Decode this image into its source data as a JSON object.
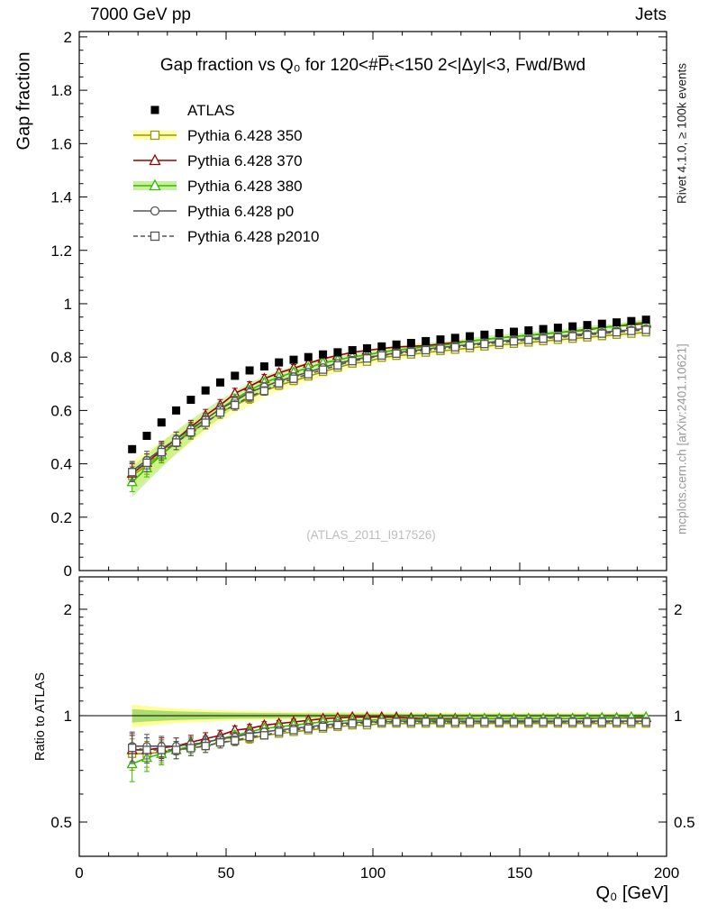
{
  "header": {
    "beam": "7000 GeV pp",
    "process": "Jets"
  },
  "panel_title": "Gap fraction vs Q₀ for 120<#P̅ₜ<150  2<|Δy|<3, Fwd/Bwd",
  "watermark": "(ATLAS_2011_I917526)",
  "side_notes": {
    "right_top": "Rivet 4.1.0, ≥ 100k events",
    "right_bottom": "mcplots.cern.ch [arXiv:2401.10621]"
  },
  "axes": {
    "x_label": "Q₀ [GeV]",
    "y_main_label": "Gap fraction",
    "y_ratio_label": "Ratio to ATLAS",
    "x_ticks": [
      0,
      50,
      100,
      150,
      200
    ],
    "y_main_ticks": [
      0,
      0.2,
      0.4,
      0.6,
      0.8,
      1,
      1.2,
      1.4,
      1.6,
      1.8,
      2
    ],
    "y_ratio_ticks": [
      0.5,
      1,
      2
    ]
  },
  "chart_data": {
    "type": "scatter",
    "title": "Gap fraction vs Q0 for 120<#PT<150, 2<|dy|<3, Fwd/Bwd",
    "xlabel": "Q0 [GeV]",
    "ylabel_main": "Gap fraction",
    "ylabel_ratio": "Ratio to ATLAS",
    "xlim": [
      0,
      200
    ],
    "ylim_main": [
      0,
      2.02
    ],
    "ylim_ratio": [
      0.4,
      2.47
    ],
    "ratio_scale": "log",
    "x": [
      18,
      23,
      28,
      33,
      38,
      43,
      48,
      53,
      58,
      63,
      68,
      73,
      78,
      83,
      88,
      93,
      98,
      103,
      108,
      113,
      118,
      123,
      128,
      133,
      138,
      143,
      148,
      153,
      158,
      163,
      168,
      173,
      178,
      183,
      188,
      193
    ],
    "mc_yerr": [
      0.036,
      0.033,
      0.03,
      0.027,
      0.025,
      0.023,
      0.021,
      0.019,
      0.018,
      0.016,
      0.015,
      0.014,
      0.013,
      0.013,
      0.012,
      0.011,
      0.011,
      0.01,
      0.01,
      0.009,
      0.009,
      0.009,
      0.008,
      0.008,
      0.008,
      0.008,
      0.007,
      0.007,
      0.007,
      0.007,
      0.007,
      0.007,
      0.006,
      0.006,
      0.006,
      0.006
    ],
    "series": [
      {
        "name": "ATLAS",
        "marker": "filled-square",
        "color": "#000000",
        "line": false,
        "values": [
          0.455,
          0.505,
          0.555,
          0.6,
          0.64,
          0.675,
          0.705,
          0.73,
          0.75,
          0.765,
          0.78,
          0.79,
          0.8,
          0.81,
          0.818,
          0.826,
          0.833,
          0.84,
          0.847,
          0.853,
          0.86,
          0.866,
          0.872,
          0.878,
          0.884,
          0.89,
          0.895,
          0.9,
          0.905,
          0.91,
          0.915,
          0.92,
          0.925,
          0.93,
          0.935,
          0.94
        ]
      },
      {
        "name": "Pythia 6.428 350",
        "marker": "open-square",
        "color": "#9a9a00",
        "line": true,
        "band": "#ffff66",
        "values": [
          0.355,
          0.394,
          0.438,
          0.48,
          0.518,
          0.554,
          0.592,
          0.62,
          0.645,
          0.673,
          0.694,
          0.711,
          0.728,
          0.745,
          0.761,
          0.776,
          0.783,
          0.798,
          0.805,
          0.81,
          0.817,
          0.823,
          0.828,
          0.834,
          0.84,
          0.846,
          0.85,
          0.855,
          0.86,
          0.865,
          0.869,
          0.874,
          0.879,
          0.884,
          0.888,
          0.893
        ]
      },
      {
        "name": "Pythia 6.428 370",
        "marker": "open-triangle",
        "color": "#990000",
        "line": true,
        "values": [
          0.364,
          0.404,
          0.45,
          0.492,
          0.538,
          0.581,
          0.62,
          0.664,
          0.69,
          0.719,
          0.741,
          0.758,
          0.776,
          0.794,
          0.806,
          0.818,
          0.825,
          0.832,
          0.838,
          0.84,
          0.843,
          0.849,
          0.855,
          0.86,
          0.866,
          0.872,
          0.877,
          0.882,
          0.887,
          0.892,
          0.897,
          0.902,
          0.911,
          0.916,
          0.921,
          0.926
        ]
      },
      {
        "name": "Pythia 6.428 380",
        "marker": "open-triangle",
        "color": "#33bb00",
        "line": true,
        "band": "#99e24d",
        "values": [
          0.332,
          0.384,
          0.433,
          0.48,
          0.525,
          0.567,
          0.606,
          0.642,
          0.675,
          0.704,
          0.725,
          0.743,
          0.76,
          0.778,
          0.789,
          0.801,
          0.808,
          0.819,
          0.826,
          0.832,
          0.839,
          0.844,
          0.85,
          0.86,
          0.866,
          0.872,
          0.877,
          0.882,
          0.887,
          0.892,
          0.897,
          0.906,
          0.911,
          0.916,
          0.926,
          0.931
        ]
      },
      {
        "name": "Pythia 6.428 p0",
        "marker": "open-circle",
        "color": "#555555",
        "line": true,
        "values": [
          0.373,
          0.414,
          0.455,
          0.492,
          0.531,
          0.567,
          0.606,
          0.635,
          0.668,
          0.689,
          0.71,
          0.727,
          0.744,
          0.761,
          0.777,
          0.789,
          0.8,
          0.806,
          0.817,
          0.823,
          0.83,
          0.836,
          0.841,
          0.847,
          0.853,
          0.859,
          0.864,
          0.869,
          0.873,
          0.878,
          0.883,
          0.888,
          0.893,
          0.898,
          0.902,
          0.907
        ]
      },
      {
        "name": "Pythia 6.428 p2010",
        "marker": "open-square",
        "color": "#555555",
        "line": true,
        "dash": true,
        "values": [
          0.369,
          0.404,
          0.444,
          0.48,
          0.518,
          0.554,
          0.592,
          0.62,
          0.653,
          0.673,
          0.702,
          0.719,
          0.736,
          0.753,
          0.769,
          0.785,
          0.795,
          0.806,
          0.813,
          0.819,
          0.826,
          0.831,
          0.837,
          0.843,
          0.849,
          0.854,
          0.859,
          0.864,
          0.869,
          0.874,
          0.878,
          0.883,
          0.888,
          0.893,
          0.898,
          0.902
        ]
      }
    ],
    "ratio_reference": "ATLAS",
    "ratio_band_colors": {
      "outer": "#ffff99",
      "inner": "#aadf70"
    }
  }
}
